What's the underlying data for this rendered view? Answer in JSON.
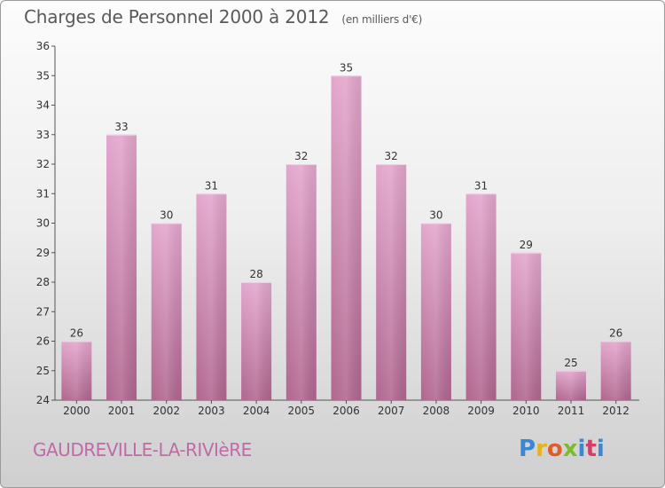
{
  "header": {
    "title": "Charges de Personnel 2000 à 2012",
    "subtitle": "(en milliers d'€)"
  },
  "footer": {
    "place": "GAUDREVILLE-LA-RIVIèRE",
    "logo": "Proxiti"
  },
  "colors": {
    "bar_top": "#e3a6cd",
    "bar_bottom": "#b0668f",
    "accent": "#c06aa8"
  },
  "chart_data": {
    "type": "bar",
    "title": "Charges de Personnel 2000 à 2012",
    "subtitle": "(en milliers d'€)",
    "xlabel": "",
    "ylabel": "",
    "categories": [
      "2000",
      "2001",
      "2002",
      "2003",
      "2004",
      "2005",
      "2006",
      "2007",
      "2008",
      "2009",
      "2010",
      "2011",
      "2012"
    ],
    "values": [
      26,
      33,
      30,
      31,
      28,
      32,
      35,
      32,
      30,
      31,
      29,
      25,
      26
    ],
    "ylim": [
      24,
      36
    ],
    "yticks": [
      24,
      25,
      26,
      27,
      28,
      29,
      30,
      31,
      32,
      33,
      34,
      35,
      36
    ],
    "grid": false,
    "legend": "none"
  }
}
